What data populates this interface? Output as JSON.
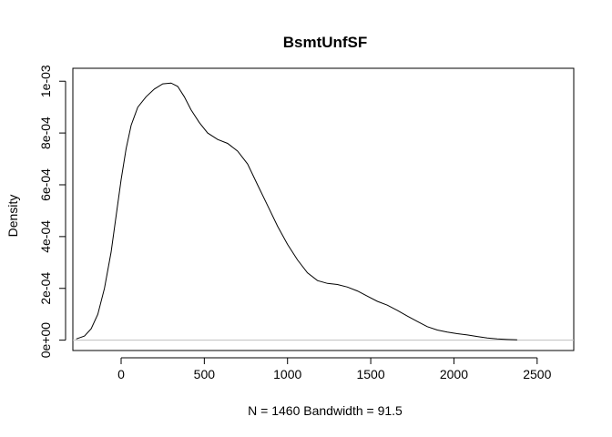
{
  "chart_data": {
    "type": "line",
    "title": "BsmtUnfSF",
    "xlabel": "N = 1460   Bandwidth = 91.5",
    "ylabel": "Density",
    "xlim": [
      -290,
      2720
    ],
    "ylim": [
      -4e-05,
      0.00105
    ],
    "x_ticks": [
      0,
      500,
      1000,
      1500,
      2000,
      2500
    ],
    "x_tick_labels": [
      "0",
      "500",
      "1000",
      "1500",
      "2000",
      "2500"
    ],
    "y_ticks": [
      0,
      0.0002,
      0.0004,
      0.0006,
      0.0008,
      0.001
    ],
    "y_tick_labels": [
      "0e+00",
      "2e-04",
      "4e-04",
      "6e-04",
      "8e-04",
      "1e-03"
    ],
    "baseline": 0,
    "baseline_color": "#bebebe",
    "line_color": "#000000",
    "grid": false,
    "legend": "none",
    "series": [
      {
        "x": [
          -270,
          -220,
          -180,
          -140,
          -100,
          -60,
          -30,
          0,
          30,
          60,
          100,
          150,
          200,
          250,
          300,
          340,
          380,
          420,
          470,
          520,
          580,
          640,
          700,
          760,
          820,
          880,
          940,
          1000,
          1060,
          1120,
          1180,
          1240,
          1300,
          1360,
          1420,
          1480,
          1540,
          1600,
          1660,
          1720,
          1780,
          1840,
          1900,
          1960,
          2020,
          2080,
          2140,
          2200,
          2260,
          2320,
          2380
        ],
        "y": [
          4.7e-06,
          1.6e-05,
          4.4e-05,
          0.0001,
          0.0002,
          0.00034,
          0.00048,
          0.00062,
          0.00074,
          0.00083,
          0.0009,
          0.00094,
          0.00097,
          0.00099,
          0.000993,
          0.00098,
          0.00094,
          0.00089,
          0.00084,
          0.0008,
          0.000775,
          0.00076,
          0.00073,
          0.00068,
          0.0006,
          0.00052,
          0.00044,
          0.00037,
          0.00031,
          0.00026,
          0.00023,
          0.000219,
          0.000215,
          0.000205,
          0.00019,
          0.00017,
          0.00015,
          0.000135,
          0.000115,
          9.3e-05,
          7.2e-05,
          5.2e-05,
          3.9e-05,
          3.1e-05,
          2.5e-05,
          2e-05,
          1.4e-05,
          8.5e-06,
          4.5e-06,
          2.5e-06,
          1e-06
        ]
      }
    ]
  }
}
